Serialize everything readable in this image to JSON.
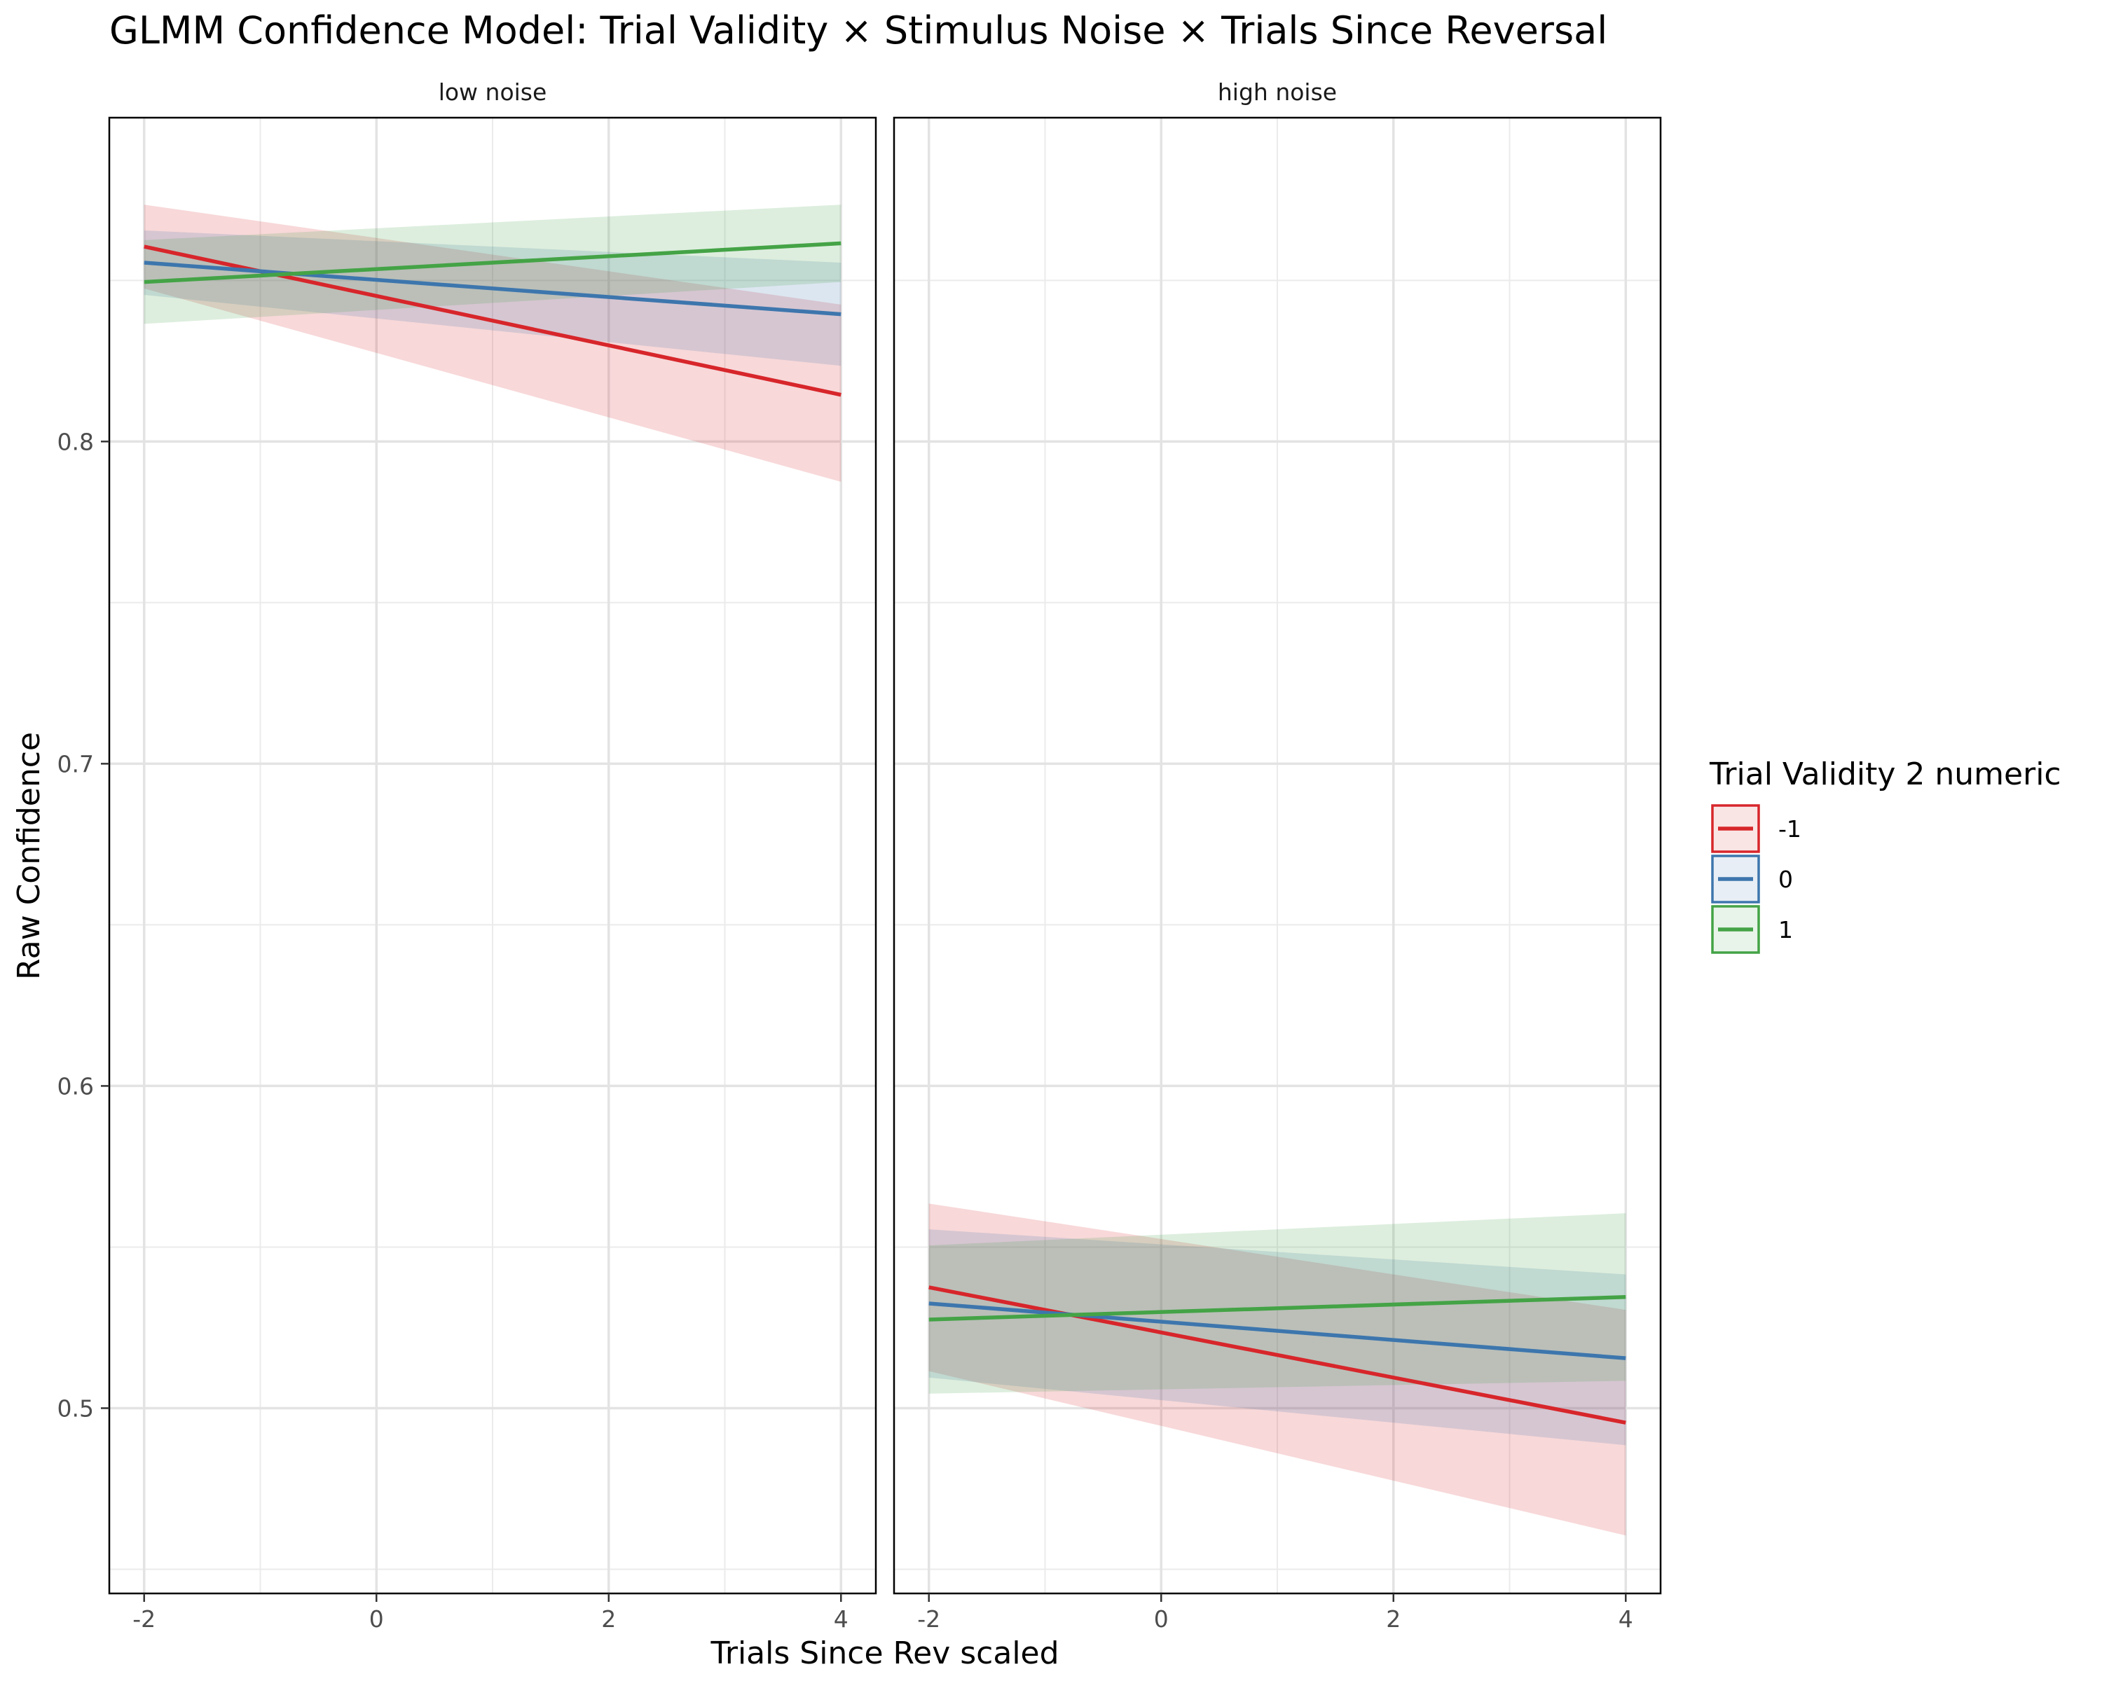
{
  "chart_data": {
    "type": "line",
    "title": "GLMM Confidence Model: Trial Validity × Stimulus Noise × Trials Since Reversal",
    "xlabel": "Trials Since Rev scaled",
    "ylabel": "Raw Confidence",
    "xlim": [
      -2.3,
      4.3
    ],
    "ylim": [
      0.4425,
      0.9005
    ],
    "x_ticks": [
      -2,
      0,
      2,
      4
    ],
    "x_tick_labels": [
      "-2",
      "0",
      "2",
      "4"
    ],
    "y_ticks": [
      0.5,
      0.6,
      0.7,
      0.8
    ],
    "y_tick_labels": [
      "0.5",
      "0.6",
      "0.7",
      "0.8"
    ],
    "grid": true,
    "legend": {
      "title": "Trial Validity 2 numeric",
      "position": "right",
      "entries": [
        "-1",
        "0",
        "1"
      ]
    },
    "panels": [
      {
        "label": "low noise",
        "series": [
          {
            "name": "-1",
            "color": "#d7262b",
            "x": [
              -2,
              4
            ],
            "y": [
              0.8605,
              0.8145
            ],
            "lower": [
              0.8475,
              0.7875
            ],
            "upper": [
              0.8735,
              0.8425
            ]
          },
          {
            "name": "0",
            "color": "#3d76ad",
            "x": [
              -2,
              4
            ],
            "y": [
              0.8555,
              0.8395
            ],
            "lower": [
              0.8455,
              0.8235
            ],
            "upper": [
              0.8655,
              0.8555
            ]
          },
          {
            "name": "1",
            "color": "#44a346",
            "x": [
              -2,
              4
            ],
            "y": [
              0.8495,
              0.8615
            ],
            "lower": [
              0.8365,
              0.8495
            ],
            "upper": [
              0.8625,
              0.8735
            ]
          }
        ]
      },
      {
        "label": "high noise",
        "series": [
          {
            "name": "-1",
            "color": "#d7262b",
            "x": [
              -2,
              4
            ],
            "y": [
              0.5375,
              0.4955
            ],
            "lower": [
              0.5115,
              0.4605
            ],
            "upper": [
              0.5635,
              0.5305
            ]
          },
          {
            "name": "0",
            "color": "#3d76ad",
            "x": [
              -2,
              4
            ],
            "y": [
              0.5325,
              0.5155
            ],
            "lower": [
              0.5095,
              0.4885
            ],
            "upper": [
              0.5555,
              0.5415
            ]
          },
          {
            "name": "1",
            "color": "#44a346",
            "x": [
              -2,
              4
            ],
            "y": [
              0.5275,
              0.5345
            ],
            "lower": [
              0.5045,
              0.5085
            ],
            "upper": [
              0.5505,
              0.5605
            ]
          }
        ]
      }
    ]
  }
}
